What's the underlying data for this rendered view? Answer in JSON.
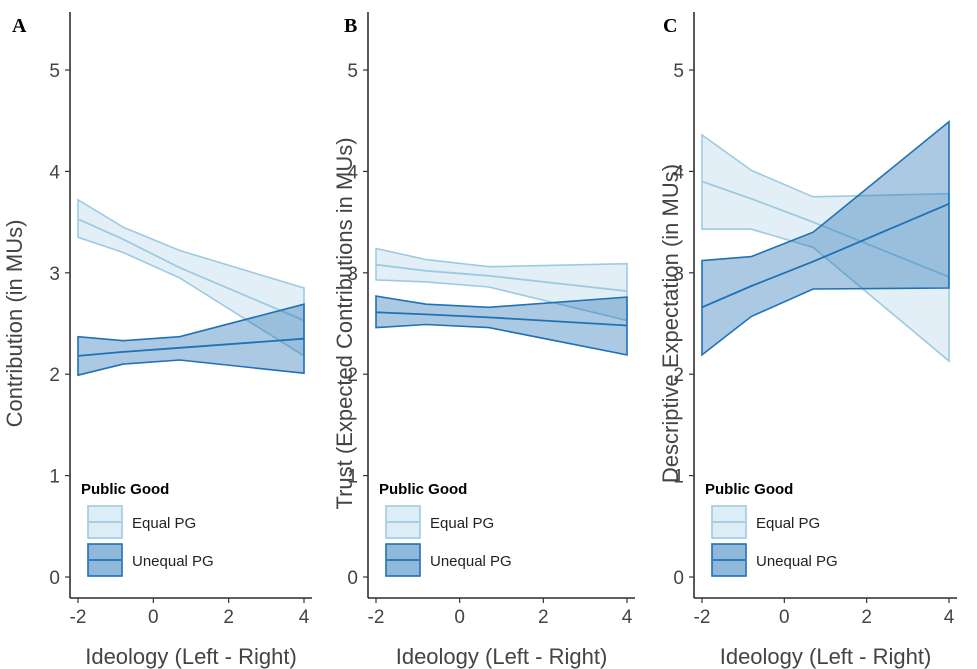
{
  "chart_data": [
    {
      "panel_label": "A",
      "type": "line",
      "xlabel": "Ideology (Left - Right)",
      "ylabel": "Contribution (in MUs)",
      "xlim": [
        -2,
        4
      ],
      "ylim": [
        0,
        5
      ],
      "xticks": [
        "-2",
        "0",
        "2",
        "4"
      ],
      "yticks": [
        "0",
        "1",
        "2",
        "3",
        "4",
        "5"
      ],
      "grid": false,
      "legend": {
        "title": "Public Good",
        "position": "bottom-left",
        "entries": [
          "Equal PG",
          "Unequal PG"
        ]
      },
      "series": [
        {
          "name": "Equal PG",
          "color": "#9ecae1",
          "x": [
            -2,
            -0.8,
            0.7,
            4
          ],
          "y": [
            3.53,
            3.33,
            3.05,
            2.53
          ],
          "lower": [
            3.35,
            3.2,
            2.95,
            2.18
          ],
          "upper": [
            3.72,
            3.45,
            3.22,
            2.85
          ]
        },
        {
          "name": "Unequal PG",
          "color": "#2171b5",
          "x": [
            -2,
            -0.8,
            0.7,
            4
          ],
          "y": [
            2.18,
            2.22,
            2.26,
            2.35
          ],
          "lower": [
            1.99,
            2.1,
            2.14,
            2.01
          ],
          "upper": [
            2.37,
            2.33,
            2.37,
            2.69
          ]
        }
      ]
    },
    {
      "panel_label": "B",
      "type": "line",
      "xlabel": "Ideology (Left - Right)",
      "ylabel": "Trust (Expected Contributions in MUs)",
      "xlim": [
        -2,
        4
      ],
      "ylim": [
        0,
        5
      ],
      "xticks": [
        "-2",
        "0",
        "2",
        "4"
      ],
      "yticks": [
        "0",
        "1",
        "2",
        "3",
        "4",
        "5"
      ],
      "grid": false,
      "legend": {
        "title": "Public Good",
        "position": "bottom-left",
        "entries": [
          "Equal PG",
          "Unequal PG"
        ]
      },
      "series": [
        {
          "name": "Equal PG",
          "color": "#9ecae1",
          "x": [
            -2,
            -0.8,
            0.7,
            4
          ],
          "y": [
            3.08,
            3.02,
            2.97,
            2.82
          ],
          "lower": [
            2.93,
            2.91,
            2.86,
            2.53
          ],
          "upper": [
            3.24,
            3.13,
            3.06,
            3.09
          ]
        },
        {
          "name": "Unequal PG",
          "color": "#2171b5",
          "x": [
            -2,
            -0.8,
            0.7,
            4
          ],
          "y": [
            2.61,
            2.59,
            2.56,
            2.48
          ],
          "lower": [
            2.46,
            2.49,
            2.46,
            2.19
          ],
          "upper": [
            2.77,
            2.69,
            2.66,
            2.76
          ]
        }
      ]
    },
    {
      "panel_label": "C",
      "type": "line",
      "xlabel": "Ideology (Left - Right)",
      "ylabel": "Descriptive Expectation (in MUs)",
      "xlim": [
        -2,
        4
      ],
      "ylim": [
        0,
        5
      ],
      "xticks": [
        "-2",
        "0",
        "2",
        "4"
      ],
      "yticks": [
        "0",
        "1",
        "2",
        "3",
        "4",
        "5"
      ],
      "grid": false,
      "legend": {
        "title": "Public Good",
        "position": "bottom-left",
        "entries": [
          "Equal PG",
          "Unequal PG"
        ]
      },
      "series": [
        {
          "name": "Equal PG",
          "color": "#9ecae1",
          "x": [
            -2,
            -0.8,
            0.7,
            4
          ],
          "y": [
            3.9,
            3.73,
            3.5,
            2.96
          ],
          "lower": [
            3.43,
            3.43,
            3.25,
            2.13
          ],
          "upper": [
            4.36,
            4.01,
            3.75,
            3.78
          ]
        },
        {
          "name": "Unequal PG",
          "color": "#2171b5",
          "x": [
            -2,
            -0.8,
            0.7,
            4
          ],
          "y": [
            2.66,
            2.87,
            3.11,
            3.68
          ],
          "lower": [
            2.19,
            2.57,
            2.84,
            2.85
          ],
          "upper": [
            3.12,
            3.16,
            3.4,
            4.49
          ]
        }
      ]
    }
  ]
}
